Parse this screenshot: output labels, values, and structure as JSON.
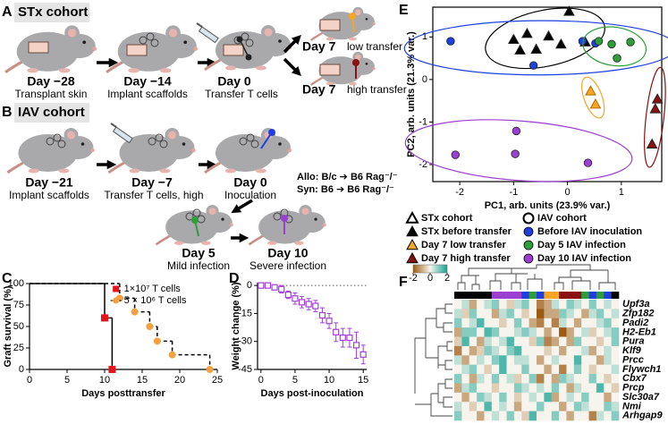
{
  "schematic_a": {
    "letter": "A",
    "title": "STx cohort",
    "steps": [
      {
        "day": "Day −28",
        "caption": "Transplant skin"
      },
      {
        "day": "Day −14",
        "caption": "Implant scaffolds"
      },
      {
        "day": "Day 0",
        "caption": "Transfer T cells"
      },
      {
        "day": "Day 7",
        "caption": "low transfer"
      },
      {
        "day": "Day 7",
        "caption": "high transfer"
      }
    ]
  },
  "schematic_b": {
    "letter": "B",
    "title": "IAV cohort",
    "steps": [
      {
        "day": "Day −21",
        "caption": "Implant scaffolds"
      },
      {
        "day": "Day −7",
        "caption": "Transfer T cells, high"
      },
      {
        "day": "Day 0",
        "caption": "Inoculation"
      },
      {
        "day": "Day 5",
        "caption": "Mild infection"
      },
      {
        "day": "Day 10",
        "caption": "Severe infection"
      }
    ],
    "notes": [
      "Allo: B/c ➔ B6 Rag⁻/⁻",
      "Syn:  B6 ➔ B6 Rag⁻/⁻"
    ]
  },
  "chart_data": [
    {
      "panel_label": "C",
      "type": "step",
      "ylabel": "Graft survival (%)",
      "xlabel": "Days posttransfer",
      "xlim": [
        0,
        25
      ],
      "ylim": [
        0,
        100
      ],
      "xticks": [
        0,
        5,
        10,
        15,
        20,
        25
      ],
      "yticks": [
        0,
        25,
        50,
        75,
        100
      ],
      "legend": "upper right",
      "series": [
        {
          "name": "1×10⁷ T cells",
          "color": "#e8141b",
          "line_color": "#000000",
          "dashed": false,
          "marker": "square",
          "x": [
            0,
            10,
            11
          ],
          "values": [
            100,
            60,
            0
          ]
        },
        {
          "name": "5 × 10⁶ T cells",
          "color": "#f5a142",
          "line_color": "#000000",
          "dashed": true,
          "marker": "circle",
          "x": [
            0,
            12,
            14,
            16,
            17,
            19,
            24
          ],
          "values": [
            100,
            83,
            67,
            50,
            33,
            17,
            0
          ]
        }
      ]
    },
    {
      "panel_label": "D",
      "type": "errorbar",
      "ylabel": "Weight change (%)",
      "xlabel": "Days post-inoculation",
      "xlim": [
        -0.5,
        15.5
      ],
      "ylim": [
        -45,
        1.5
      ],
      "xticks": [
        0,
        5,
        10,
        15
      ],
      "yticks": [
        0,
        -15,
        -30,
        -45
      ],
      "hline": 0,
      "series": [
        {
          "color": "#a23fd6",
          "marker": "open-square",
          "x": [
            0,
            1,
            2,
            3,
            4,
            5,
            6,
            7,
            8,
            9,
            10,
            11,
            12,
            13,
            14,
            15
          ],
          "values": [
            0,
            0,
            -1,
            -2,
            -5,
            -7,
            -9,
            -10,
            -11,
            -16,
            -19,
            -25,
            -28,
            -28,
            -32,
            -37
          ],
          "errors": [
            1,
            1,
            1,
            2,
            2,
            3,
            3,
            3,
            3,
            4,
            4,
            5,
            5,
            5,
            7,
            5
          ]
        }
      ]
    },
    {
      "panel_label": "E",
      "type": "scatter",
      "xlabel": "PC1, arb. units (23.9% var.)",
      "ylabel": "PC2, arb. units (21.3% var.)",
      "xlim": [
        -2.5,
        1.75
      ],
      "ylim": [
        -2.4,
        1.7
      ],
      "xticks": [
        -2,
        -1,
        0,
        1
      ],
      "yticks": [
        -2,
        -1,
        0,
        1
      ],
      "box": true,
      "ellipses": true,
      "legend": "below",
      "legend_headers": [
        {
          "name": "STx cohort",
          "marker": "triangle"
        },
        {
          "name": "IAV cohort",
          "marker": "circle"
        }
      ],
      "series": [
        {
          "name": "STx before transfer",
          "color": "#000000",
          "marker": "triangle",
          "x": [
            0.03,
            -1.0,
            -0.75,
            -0.88,
            -0.58,
            -0.35,
            -0.12,
            0.33
          ],
          "values": [
            1.6,
            0.94,
            1.08,
            0.69,
            0.71,
            1.02,
            0.83,
            0.88
          ]
        },
        {
          "name": "Day 7 low transfer",
          "color": "#f5a623",
          "marker": "triangle",
          "x": [
            0.43,
            0.52
          ],
          "values": [
            -0.27,
            -0.58
          ]
        },
        {
          "name": "Day 7 high transfer",
          "color": "#8b1010",
          "marker": "triangle",
          "x": [
            1.67,
            1.63,
            1.57
          ],
          "values": [
            -0.46,
            -0.69,
            -1.52
          ]
        },
        {
          "name": "Before IAV inoculation",
          "color": "#1f3fe0",
          "marker": "circle",
          "x": [
            -2.17,
            -0.63,
            0.28,
            0.52
          ],
          "values": [
            0.9,
            0.33,
            0.9,
            0.85
          ]
        },
        {
          "name": "Day 5 IAV infection",
          "color": "#2e9e3a",
          "marker": "circle",
          "x": [
            0.58,
            0.82,
            1.17,
            0.92
          ],
          "values": [
            0.9,
            0.83,
            0.88,
            0.5
          ]
        },
        {
          "name": "Day 10 IAV infection",
          "color": "#9b3fd1",
          "marker": "circle",
          "x": [
            -2.08,
            -0.97,
            -0.95,
            0.38
          ],
          "values": [
            -1.77,
            -1.75,
            -1.21,
            -1.96
          ]
        }
      ]
    },
    {
      "panel_label": "F",
      "type": "heatmap",
      "rows": [
        "Upf3a",
        "Zfp182",
        "Padi2",
        "H2-Eb1",
        "Pura",
        "Klf9",
        "Prcc",
        "Flywch1",
        "Cbx7",
        "Prcp",
        "Slc30a7",
        "Nmi",
        "Arhgap9"
      ],
      "column_colors": [
        "#000000",
        "#000000",
        "#000000",
        "#000000",
        "#000000",
        "#9b3fd1",
        "#9b3fd1",
        "#9b3fd1",
        "#9b3fd1",
        "#1f3fe0",
        "#2e9e3a",
        "#1f3fe0",
        "#f5a623",
        "#f5a623",
        "#8b1010",
        "#8b1010",
        "#8b1010",
        "#2e9e3a",
        "#1f3fe0",
        "#2e9e3a",
        "#1f3fe0",
        "#000000"
      ],
      "zlim": [
        -2,
        2
      ],
      "colorbar_ticks": [
        -2,
        0,
        2
      ],
      "colorscale": [
        "#9c5a12",
        "#f6f4ec",
        "#17a394"
      ],
      "values": [
        [
          0,
          0.5,
          -1,
          0,
          0.5,
          1,
          0,
          -0.5,
          0.5,
          1,
          0,
          -1.5,
          -1,
          0.5,
          0,
          1,
          0.5,
          0,
          1,
          0,
          0.5,
          0
        ],
        [
          0.5,
          -0.5,
          1,
          0,
          0,
          -1,
          0.5,
          1,
          0,
          -0.5,
          0,
          -2,
          -1,
          -1,
          1,
          0.5,
          0,
          -1,
          0.5,
          1,
          0,
          0.5
        ],
        [
          1,
          0,
          0.5,
          1.5,
          0,
          0,
          -0.5,
          0,
          1,
          0,
          -1,
          -1.5,
          0,
          -1.5,
          0.5,
          0,
          -1,
          0,
          0,
          0.5,
          1,
          0
        ],
        [
          -1,
          1,
          1,
          0,
          1.5,
          1,
          0,
          0,
          0.5,
          1,
          0.5,
          0,
          -1,
          0,
          -2,
          -1,
          0,
          0.5,
          -0.5,
          0,
          0.5,
          1
        ],
        [
          -0.5,
          1.5,
          0,
          -1,
          0.5,
          0,
          0.5,
          1.5,
          0,
          0,
          -0.5,
          1,
          -1.5,
          -1,
          0,
          -1,
          1,
          0,
          0,
          -0.5,
          0,
          1
        ],
        [
          -1.5,
          0,
          -1,
          -0.5,
          1,
          0.5,
          0,
          1,
          1.5,
          0,
          0,
          0,
          -0.5,
          0,
          -1,
          0,
          0,
          0.5,
          -1,
          0,
          0.5,
          0
        ],
        [
          0.5,
          -1,
          0,
          0.5,
          0,
          1,
          1.5,
          0,
          0.5,
          0.5,
          0,
          -1,
          0,
          0.5,
          0,
          0,
          1.5,
          0,
          0,
          -1,
          0.5,
          0
        ],
        [
          0,
          0.5,
          1,
          0,
          -0.5,
          0,
          1.5,
          0,
          0,
          1,
          0,
          0,
          -1,
          0,
          -1.5,
          0,
          1,
          0,
          -0.5,
          0,
          0,
          0.5
        ],
        [
          1,
          0,
          -1,
          0.5,
          0,
          1,
          0,
          0.5,
          -0.5,
          0,
          1,
          -1.5,
          0,
          -1,
          1,
          0.5,
          0,
          0,
          1,
          0,
          -0.5,
          0
        ],
        [
          -1,
          0.5,
          1,
          0,
          0,
          -0.5,
          0,
          0,
          1,
          0.5,
          0,
          0.5,
          0,
          1,
          0,
          -1,
          0.5,
          0,
          0,
          1.5,
          0,
          -0.5
        ],
        [
          0,
          -1,
          0,
          1,
          0.5,
          0,
          1,
          0,
          -0.5,
          0,
          0.5,
          0,
          1.5,
          -1,
          0,
          0.5,
          0,
          1,
          0,
          0,
          -1,
          0
        ],
        [
          0.5,
          0,
          -0.5,
          0,
          1.5,
          0,
          0.5,
          0,
          -1,
          0,
          0,
          1,
          0,
          0,
          -1,
          0,
          1,
          0.5,
          0,
          0,
          1,
          0.5
        ],
        [
          1,
          0,
          0,
          -1,
          0,
          0.5,
          0,
          1,
          0,
          -0.5,
          1.5,
          0,
          0,
          1,
          0,
          -1,
          0,
          0,
          -1.5,
          0.5,
          0,
          1
        ]
      ]
    }
  ]
}
